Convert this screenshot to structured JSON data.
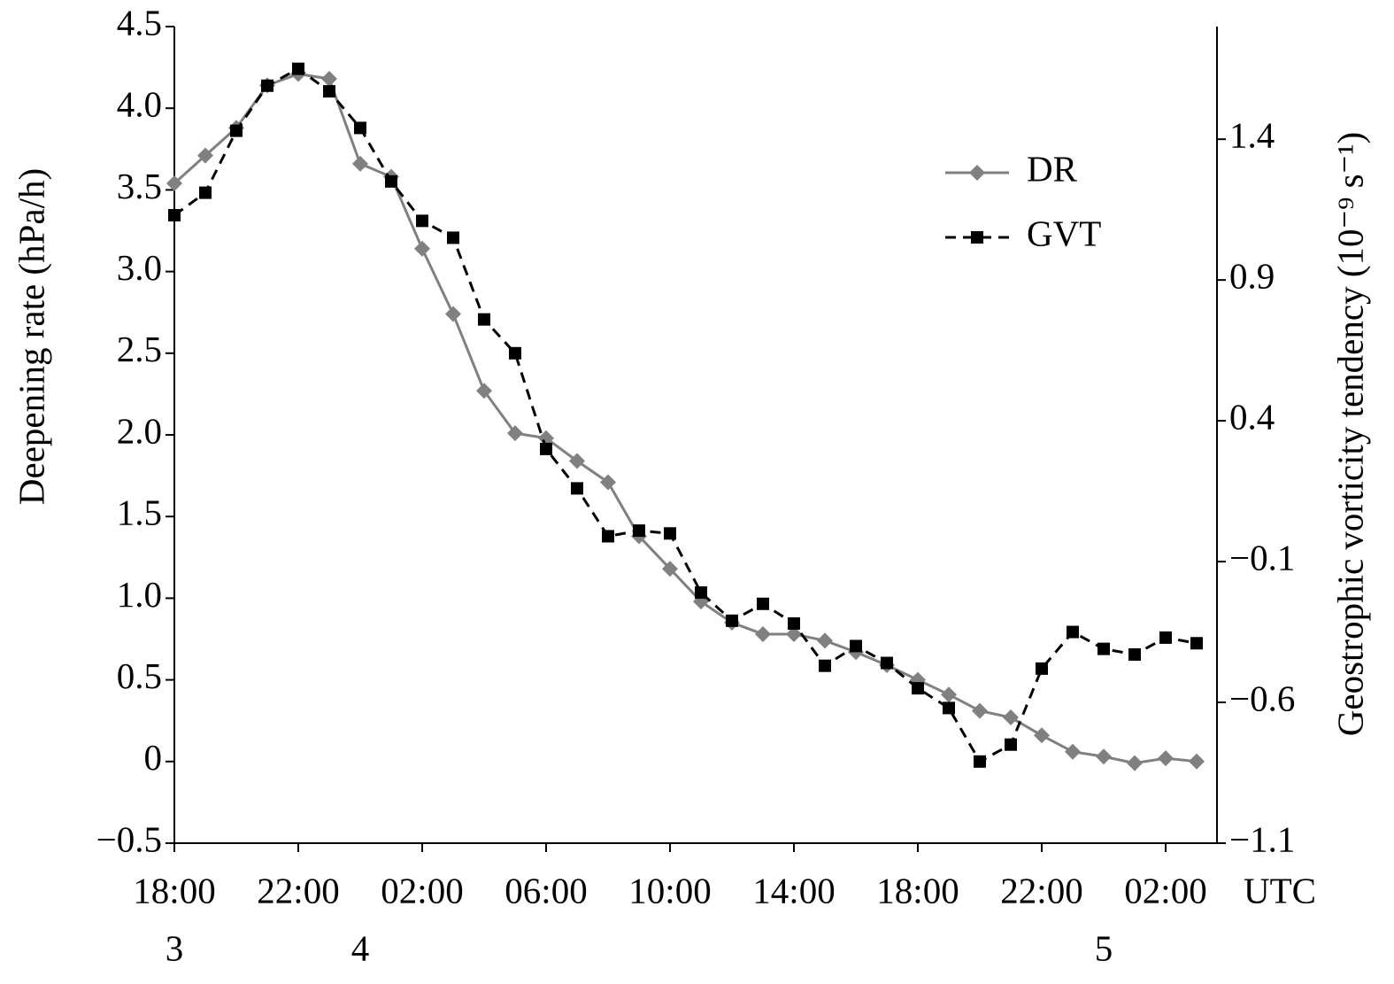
{
  "chart_data": {
    "type": "line",
    "ylabel": "Deepening rate (hPa/h)",
    "y2label": "Geostrophic vorticity tendency (10⁻⁹ s⁻¹)",
    "xlabel": "UTC",
    "categories": [
      "18:00",
      null,
      null,
      null,
      "22:00",
      null,
      null,
      null,
      "02:00",
      null,
      null,
      null,
      "06:00",
      null,
      null,
      null,
      "10:00",
      null,
      null,
      null,
      "14:00",
      null,
      null,
      null,
      "18:00",
      null,
      null,
      null,
      "22:00",
      null,
      null,
      null,
      "02:00",
      null
    ],
    "category_days": [
      "3",
      null,
      null,
      null,
      null,
      null,
      "4",
      null,
      null,
      null,
      null,
      null,
      null,
      null,
      null,
      null,
      null,
      null,
      null,
      null,
      null,
      null,
      null,
      null,
      null,
      null,
      null,
      null,
      null,
      null,
      "5",
      null,
      null,
      null
    ],
    "series": [
      {
        "name": "DR",
        "color": "#808080",
        "marker": "diamond",
        "dash": false,
        "values": [
          3.54,
          3.71,
          3.88,
          4.14,
          4.21,
          4.18,
          3.66,
          3.58,
          3.14,
          2.74,
          2.27,
          2.01,
          1.98,
          1.84,
          1.71,
          1.38,
          1.18,
          0.98,
          0.85,
          0.78,
          0.78,
          0.74,
          0.67,
          0.59,
          0.5,
          0.41,
          0.31,
          0.27,
          0.16,
          0.06,
          0.03,
          -0.01,
          0.02,
          0
        ]
      },
      {
        "name": "GVT",
        "color": "#000000",
        "marker": "square",
        "dash": true,
        "axis": "y2",
        "values": [
          1.13,
          1.21,
          1.43,
          1.59,
          1.65,
          1.57,
          1.44,
          1.25,
          1.11,
          1.05,
          0.76,
          0.64,
          0.3,
          0.16,
          -0.01,
          0.01,
          0,
          -0.21,
          -0.31,
          -0.25,
          -0.32,
          -0.47,
          -0.4,
          -0.46,
          -0.55,
          -0.62,
          -0.81,
          -0.75,
          -0.48,
          -0.35,
          -0.41,
          -0.43,
          -0.37,
          -0.39
        ]
      }
    ],
    "ylim": [
      -0.5,
      4.5
    ],
    "yticks": [
      {
        "value": -0.5,
        "label": "−0.5"
      },
      0,
      0.5,
      {
        "value": 1,
        "label": "1.0"
      },
      1.5,
      {
        "value": 2,
        "label": "2.0"
      },
      2.5,
      {
        "value": 3,
        "label": "3.0"
      },
      3.5,
      {
        "value": 4,
        "label": "4.0"
      },
      4.5
    ],
    "y2lim": [
      -1.1,
      1.8
    ],
    "y2ticks": [
      {
        "value": -1.1,
        "label": "−1.1"
      },
      {
        "value": -0.6,
        "label": "−0.6"
      },
      {
        "value": -0.1,
        "label": "−0.1"
      },
      0.4,
      0.9,
      1.4
    ],
    "legend": "upper right",
    "grid": false
  }
}
